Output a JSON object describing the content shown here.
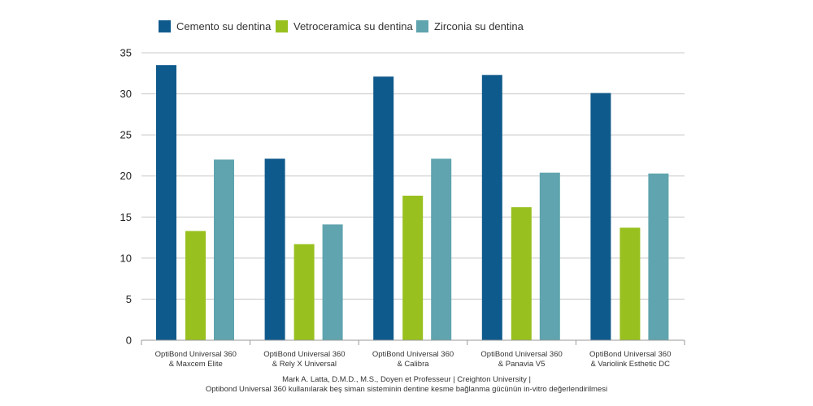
{
  "chart_data": {
    "type": "bar",
    "categories": [
      [
        "OptiBond Universal 360",
        "& Maxcem Elite"
      ],
      [
        "OptiBond Universal 360",
        "& Rely X Universal"
      ],
      [
        "OptiBond Universal 360",
        "& Calibra"
      ],
      [
        "OptiBond Universal 360",
        "& Panavia V5"
      ],
      [
        "OptiBond Universal 360",
        "& Variolink Esthetic DC"
      ]
    ],
    "series": [
      {
        "name": "Cemento su dentina",
        "color": "#0f5a8c",
        "values": [
          33.5,
          22.1,
          32.1,
          32.3,
          30.1
        ]
      },
      {
        "name": "Vetroceramica su dentina",
        "color": "#98c01f",
        "values": [
          13.3,
          11.7,
          17.6,
          16.2,
          13.7
        ]
      },
      {
        "name": "Zirconia su dentina",
        "color": "#5fa4ae",
        "values": [
          22.0,
          14.1,
          22.1,
          20.4,
          20.3
        ]
      }
    ],
    "ylim": [
      0,
      35
    ],
    "yticks": [
      0,
      5,
      10,
      15,
      20,
      25,
      30,
      35
    ],
    "grid": true,
    "legend": "top-left",
    "xlabel": "",
    "ylabel": "",
    "footer": [
      "Mark A. Latta, D.M.D., M.S., Doyen et Professeur  | Creighton University |",
      "Optibond Universal 360 kullanılarak beş siman sisteminin dentine kesme bağlanma gücünün in-vitro değerlendirilmesi"
    ]
  }
}
